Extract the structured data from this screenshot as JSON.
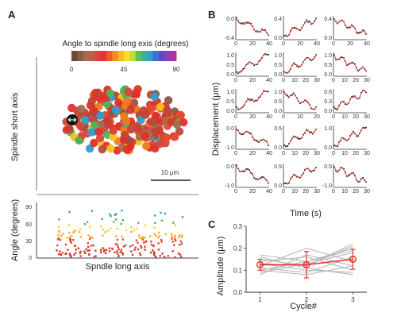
{
  "panels": {
    "a": "A",
    "b": "B",
    "c": "C"
  },
  "panel_a": {
    "colorbar": {
      "title": "Angle to spindle long exis (degrees)",
      "tick_labels": [
        "0",
        "45",
        "90"
      ],
      "colors": [
        "#6b4a3a",
        "#8a5a45",
        "#a66a50",
        "#c25b4a",
        "#d9443a",
        "#e8322f",
        "#f25a2a",
        "#f78a22",
        "#fbb81f",
        "#f5e21c",
        "#bde03a",
        "#5fc052",
        "#33b39a",
        "#2f9fcf",
        "#3b6fd0",
        "#5a4ac4",
        "#8a3fb8",
        "#b0359e"
      ]
    },
    "y_label": "Spindle short axis",
    "scale_bar": "10 μm",
    "point_colors": [
      "#e0302a",
      "#d23a2e",
      "#c8402f",
      "#e84a2c",
      "#f07a25",
      "#8a5a45",
      "#a66a50",
      "#f6c21e",
      "#e0302a",
      "#d9443a",
      "#4fb45a",
      "#2f9fcf",
      "#e0302a",
      "#b84a3a"
    ]
  },
  "panel_a_scatter": {
    "y_label": "Angle (degrees)",
    "x_label": "Spndle long axis",
    "y_ticks": [
      "0",
      "30",
      "60",
      "90"
    ]
  },
  "panel_b": {
    "y_label": "Displacement (μm)",
    "x_label": "Time (s)",
    "subplots": [
      {
        "yticks": [
          "0.0",
          "-0.4"
        ],
        "xticks": [
          "0",
          "20",
          "40"
        ]
      },
      {
        "yticks": [
          "0.4",
          "0.0"
        ],
        "xticks": [
          "0",
          "20",
          "40"
        ]
      },
      {
        "yticks": [
          "0.4",
          "0.0"
        ],
        "xticks": [
          "0",
          "20",
          "40"
        ]
      },
      {
        "yticks": [
          "1.0",
          "0.5",
          "0.0"
        ],
        "xticks": [
          "0",
          "20",
          "40"
        ]
      },
      {
        "yticks": [
          "1.0",
          "0.5",
          "0.0"
        ],
        "xticks": [
          "0",
          "10",
          "20",
          "30"
        ]
      },
      {
        "yticks": [
          "1.0",
          "0.5",
          "0.0"
        ],
        "xticks": [
          "0",
          "10",
          "20",
          "30"
        ]
      },
      {
        "yticks": [
          "1.0",
          "0.5",
          "0.0"
        ],
        "xticks": [
          "0",
          "20",
          "40"
        ]
      },
      {
        "yticks": [
          "1.0",
          "0.5",
          "0.0"
        ],
        "xticks": [
          "0",
          "10",
          "20"
        ]
      },
      {
        "yticks": [
          "0.6",
          "0.3",
          "0.0"
        ],
        "xticks": [
          "0",
          "10",
          "20",
          "30"
        ]
      },
      {
        "yticks": [
          "0.0",
          "-1.0"
        ],
        "xticks": [
          "0",
          "20",
          "40"
        ]
      },
      {
        "yticks": [
          "0.5",
          "0.0"
        ],
        "xticks": [
          "0",
          "10",
          "20",
          "30"
        ]
      },
      {
        "yticks": [
          "1.0",
          "0.0"
        ],
        "xticks": [
          "0",
          "10",
          "20",
          "30"
        ]
      },
      {
        "yticks": [
          "0.0",
          "-1.0"
        ],
        "xticks": [
          "0",
          "20",
          "40"
        ]
      },
      {
        "yticks": [
          "0.5",
          "0.0"
        ],
        "xticks": [
          "0",
          "10",
          "20",
          "30"
        ]
      },
      {
        "yticks": [
          "0.5",
          "-1.0"
        ],
        "xticks": [
          "0",
          "10",
          "20",
          "30"
        ]
      }
    ]
  },
  "chart_data": {
    "type": "line",
    "xlabel": "Cycle#",
    "ylabel": "Amplitude (μm)",
    "x": [
      1,
      2,
      3
    ],
    "xlim": [
      0.7,
      3.3
    ],
    "ylim": [
      0.0,
      0.3
    ],
    "y_ticks": [
      "0.0",
      "0.1",
      "0.2",
      "0.3"
    ],
    "x_ticks": [
      "1",
      "2",
      "3"
    ],
    "mean": {
      "values": [
        0.125,
        0.125,
        0.15
      ],
      "err": [
        0.025,
        0.06,
        0.045
      ],
      "color": "#e03a30"
    },
    "individual": [
      [
        0.1,
        0.14,
        0.2
      ],
      [
        0.13,
        0.1,
        0.09
      ],
      [
        0.08,
        0.17,
        0.12
      ],
      [
        0.15,
        0.12,
        0.22
      ],
      [
        0.11,
        0.09,
        0.16
      ],
      [
        0.14,
        0.16,
        0.1
      ],
      [
        0.09,
        0.13,
        0.18
      ],
      [
        0.16,
        0.11,
        0.08
      ],
      [
        0.12,
        0.2,
        0.14
      ],
      [
        0.1,
        0.08,
        0.12
      ],
      [
        0.17,
        0.14,
        0.19
      ],
      [
        0.13,
        0.12,
        0.21
      ]
    ],
    "individual_color": "#b8b8b8"
  }
}
